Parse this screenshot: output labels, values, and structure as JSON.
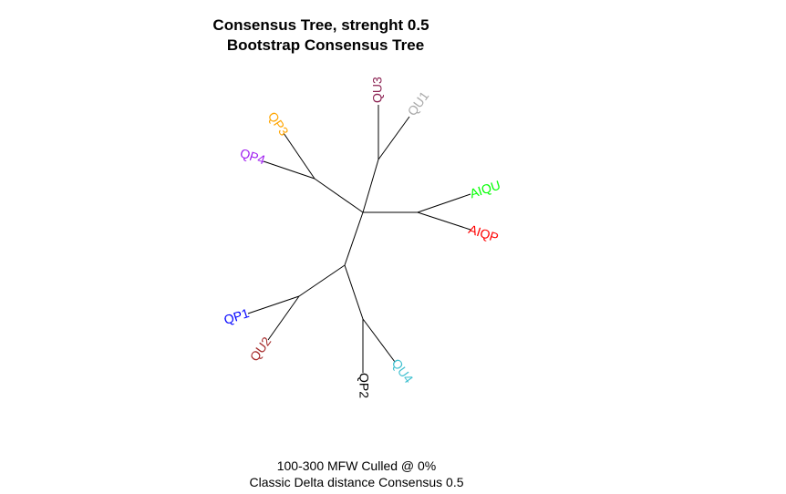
{
  "title": "Consensus Tree, strenght 0.5",
  "subtitle": "Bootstrap Consensus Tree",
  "caption_line1": "100-300 MFW  Culled @ 0%",
  "caption_line2": "Classic Delta distance Consensus 0.5",
  "tips": [
    {
      "label": "QU3",
      "color": "#8B2252"
    },
    {
      "label": "QU1",
      "color": "#A9A9A9"
    },
    {
      "label": "QP3",
      "color": "#FFA500"
    },
    {
      "label": "QP4",
      "color": "#A020F0"
    },
    {
      "label": "AIQU",
      "color": "#00FF00"
    },
    {
      "label": "AIQP",
      "color": "#FF0000"
    },
    {
      "label": "QP1",
      "color": "#0000FF"
    },
    {
      "label": "QU2",
      "color": "#A52A2A"
    },
    {
      "label": "QP2",
      "color": "#000000"
    },
    {
      "label": "QU4",
      "color": "#40C0D0"
    }
  ]
}
